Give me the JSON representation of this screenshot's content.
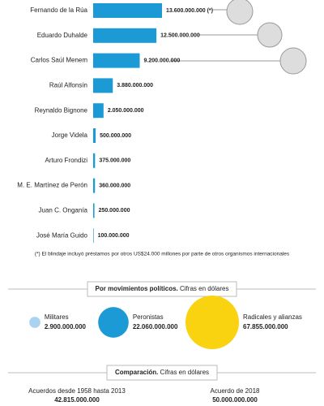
{
  "chart_data": [
    {
      "type": "bar",
      "orientation": "horizontal",
      "categories": [
        "Fernando de la Rúa",
        "Eduardo Duhalde",
        "Carlos Saúl Menem",
        "Raúl Alfonsín",
        "Reynaldo Bignone",
        "Jorge Videla",
        "Arturo Frondizi",
        "M. E. Martínez de Perón",
        "Juan C. Onganía",
        "José María Guido"
      ],
      "values": [
        13600000000,
        12500000000,
        9200000000,
        3880000000,
        2050000000,
        500000000,
        375000000,
        360000000,
        250000000,
        100000000
      ],
      "value_labels": [
        "13.600.000.000 (*)",
        "12.500.000.000",
        "9.200.000.000",
        "3.880.000.000",
        "2.050.000.000",
        "500.000.000",
        "375.000.000",
        "360.000.000",
        "250.000.000",
        "100.000.000"
      ],
      "color": "#1b9ad6",
      "annotation": "(*) El blindaje incluyó préstamos por otros US$24.000 millones por parte de otros organismos internacionales"
    },
    {
      "type": "bubble",
      "title": "Por movimientos políticos.",
      "subtitle": "Cifras en dólares",
      "categories": [
        "Militares",
        "Peronistas",
        "Radicales y alianzas"
      ],
      "values": [
        2900000000,
        22060000000,
        67855000000
      ],
      "value_labels": [
        "2.900.000.000",
        "22.060.000.000",
        "67.855.000.000"
      ],
      "colors": [
        "#a9d3ee",
        "#1b9ad6",
        "#f9d210"
      ]
    }
  ],
  "comparison": {
    "title": "Comparación.",
    "subtitle": "Cifras en dólares",
    "items": [
      {
        "label": "Acuerdos desde 1958 hasta 2013",
        "value": "42.815.000.000"
      },
      {
        "label": "Acuerdo de 2018",
        "value": "50.000.000.000"
      }
    ]
  }
}
